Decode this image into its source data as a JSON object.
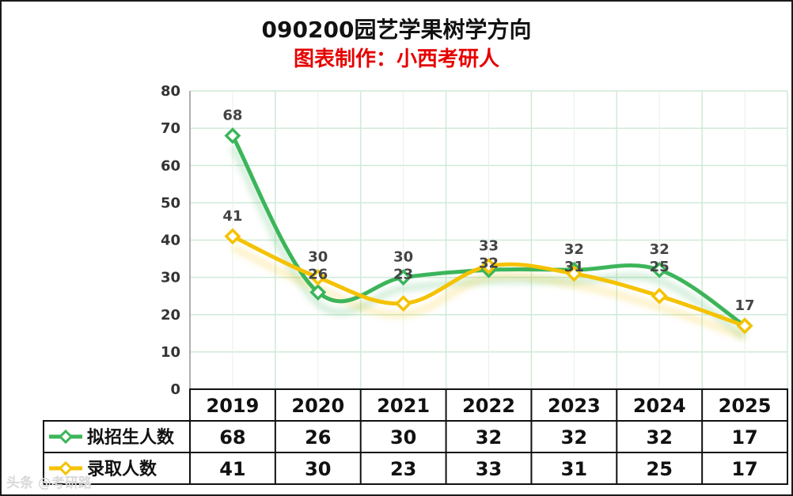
{
  "chart_data": {
    "type": "line",
    "title": "090200园艺学果树学方向",
    "subtitle": "图表制作：小西考研人",
    "categories": [
      "2019",
      "2020",
      "2021",
      "2022",
      "2023",
      "2024",
      "2025"
    ],
    "ylim": [
      0,
      80
    ],
    "yticks": [
      0,
      10,
      20,
      30,
      40,
      50,
      60,
      70,
      80
    ],
    "grid": true,
    "legend_position": "bottom-table",
    "series": [
      {
        "name": "拟招生人数",
        "color": "#3cb55a",
        "values": [
          68,
          26,
          30,
          32,
          32,
          32,
          17
        ]
      },
      {
        "name": "录取人数",
        "color": "#f5c200",
        "values": [
          41,
          30,
          23,
          33,
          31,
          25,
          17
        ]
      }
    ]
  },
  "watermark": "头条 @考研路"
}
